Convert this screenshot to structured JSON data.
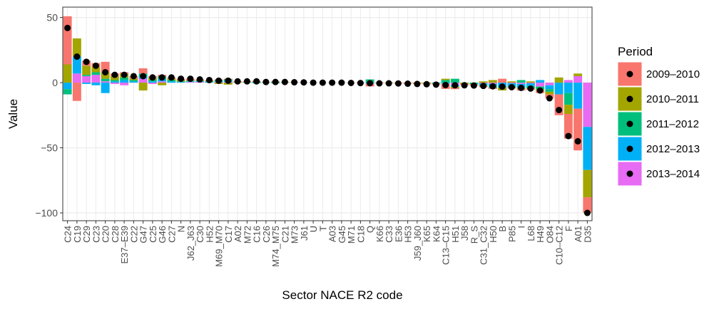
{
  "chart_data": {
    "type": "stacked-bar",
    "x_label": "Sector NACE R2 code",
    "y_label": "Value",
    "legend_title": "Period",
    "legend_position": "right",
    "grid": true,
    "ylim": [
      -106,
      58
    ],
    "yticks": [
      {
        "value": -100,
        "label": "−100"
      },
      {
        "value": -50,
        "label": "−50"
      },
      0,
      50
    ],
    "categories": [
      "C24",
      "C19",
      "C29",
      "C23",
      "C20",
      "C28",
      "E37–E39",
      "C22",
      "G47",
      "C25",
      "G46",
      "C27",
      "N",
      "J62_J63",
      "C30",
      "H52",
      "M69_M70",
      "C17",
      "A02",
      "M72",
      "C16",
      "C26",
      "M74_M75",
      "C21",
      "M73",
      "J61",
      "U",
      "T",
      "A03",
      "G45",
      "M71",
      "C18",
      "Q",
      "K66",
      "C33",
      "E36",
      "H53",
      "J59_J60",
      "K65",
      "K64",
      "C13–C15",
      "H51",
      "J58",
      "R_S",
      "C31_C32",
      "H50",
      "B",
      "P85",
      "I",
      "L68",
      "H49",
      "O84",
      "C10–C12",
      "F",
      "A01",
      "D35"
    ],
    "series": [
      {
        "name": "2009–2010",
        "color": "#F8766D",
        "values": [
          37,
          -14,
          4,
          3,
          8,
          2,
          1,
          2,
          4,
          1,
          1,
          1,
          1,
          1,
          0.5,
          0.5,
          0.5,
          0.5,
          0.5,
          0.5,
          0.5,
          0.5,
          0.5,
          0,
          0.3,
          0.2,
          0,
          0,
          0,
          0,
          -0.2,
          -0.3,
          -2,
          -0.5,
          0,
          -0.6,
          -0.8,
          -0.5,
          -0.6,
          -0.5,
          -4,
          -1,
          -1,
          -1,
          -1,
          -1,
          3,
          -1,
          -1,
          -1,
          -2,
          -3,
          -16,
          -19,
          -32,
          -12
        ]
      },
      {
        "name": "2010–2011",
        "color": "#A3A500",
        "values": [
          14,
          14,
          7,
          4,
          5,
          3,
          3,
          1,
          -6,
          2,
          -2,
          1,
          1,
          0.5,
          0.5,
          0.5,
          -1,
          -1.5,
          0.5,
          0,
          0.5,
          0,
          0,
          0.5,
          0,
          0,
          0,
          0,
          0,
          0,
          0,
          0,
          0,
          0,
          -0.5,
          0,
          0,
          -0.5,
          -0.6,
          -0.5,
          1,
          -1,
          -1,
          0,
          1,
          2,
          -2,
          1,
          -1,
          1,
          -1,
          -2,
          4,
          -7,
          2,
          -21
        ]
      },
      {
        "name": "2011–2012",
        "color": "#00BF7D",
        "values": [
          -4,
          0,
          1,
          2,
          2,
          1,
          2,
          1,
          2,
          1,
          2,
          1,
          0.5,
          0.5,
          0.5,
          0.5,
          1,
          1,
          0,
          0.5,
          -0.5,
          0,
          -0.5,
          0,
          0,
          0,
          0,
          0,
          0,
          0,
          0,
          0,
          2.5,
          0,
          0,
          0,
          0,
          0,
          0,
          0,
          2,
          3,
          0,
          -1.2,
          -1,
          -1,
          -1,
          -1,
          2,
          -2,
          -2,
          -2,
          0,
          -9,
          0,
          0
        ]
      },
      {
        "name": "2012–2013",
        "color": "#00B0F6",
        "values": [
          -5,
          13,
          -1,
          -2,
          -8,
          1,
          2,
          1,
          2,
          1,
          2,
          1,
          0.5,
          0.5,
          0.5,
          0.5,
          0.5,
          1,
          0,
          0,
          0.5,
          0,
          0.5,
          0,
          0,
          0,
          0,
          0,
          0,
          0,
          0,
          0,
          -0.9,
          0,
          0,
          0,
          0,
          0,
          0,
          -0.5,
          -0.8,
          -1,
          0,
          0,
          -1,
          -2,
          -3,
          -2,
          -3,
          -2,
          2,
          -3,
          -9,
          -8,
          -20,
          -33
        ]
      },
      {
        "name": "2013–2014",
        "color": "#E76BF3",
        "values": [
          0,
          7,
          5,
          6,
          1,
          -1,
          -2,
          0,
          3,
          -1,
          1,
          0,
          0,
          0.5,
          0.5,
          0,
          0.5,
          0.5,
          0,
          0,
          0,
          0,
          0,
          0,
          0,
          0,
          0,
          0,
          0,
          0,
          0,
          0,
          0,
          0,
          0,
          0,
          0,
          0,
          0,
          0,
          0,
          -2,
          0,
          0,
          -0.5,
          -0.8,
          0,
          -0.5,
          -1,
          -0.5,
          -3,
          -2,
          0,
          2,
          5,
          -34
        ]
      }
    ],
    "totals": [
      42,
      20,
      16,
      13,
      8,
      6,
      6,
      5,
      5,
      4,
      4,
      4,
      3,
      3,
      2.5,
      2,
      1.5,
      1.5,
      1,
      1,
      1,
      0.5,
      0.5,
      0.5,
      0.3,
      0.2,
      0,
      0,
      0,
      0,
      -0.2,
      -0.3,
      -0.4,
      -0.5,
      -0.5,
      -0.6,
      -0.8,
      -1,
      -1.2,
      -1.5,
      -1.8,
      -2,
      -2,
      -2.2,
      -2.5,
      -2.8,
      -3,
      -3.5,
      -4,
      -4.5,
      -6,
      -12,
      -21,
      -41,
      -45,
      -100
    ]
  }
}
